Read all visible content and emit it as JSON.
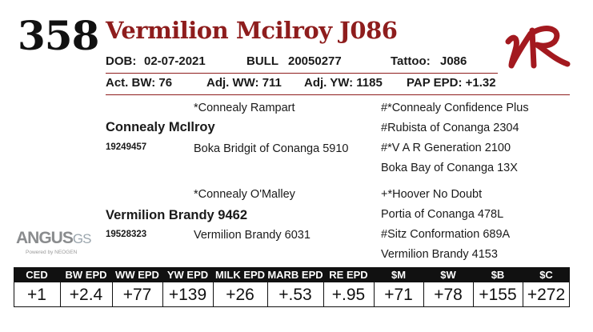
{
  "lot_number": "358",
  "name": "Vermilion Mcilroy J086",
  "dob_label": "DOB:",
  "dob": "02-07-2021",
  "sex_label": "BULL",
  "reg_number": "20050277",
  "tattoo_label": "Tattoo:",
  "tattoo": "J086",
  "act_bw": "Act. BW: 76",
  "adj_ww": "Adj. WW: 711",
  "adj_yw": "Adj. YW: 1185",
  "pap_epd": "PAP EPD: +1.32",
  "pedigree": {
    "sire": "Connealy McIlroy",
    "sire_reg": "19249457",
    "sire_sire": "*Connealy Rampart",
    "sire_dam": "Boka Bridgit of Conanga 5910",
    "sss": "#*Connealy Confidence Plus",
    "ssd": "#Rubista of Conanga 2304",
    "sds": "#*V A R Generation 2100",
    "sdd": "Boka Bay of Conanga 13X",
    "dam": "Vermilion Brandy 9462",
    "dam_reg": "19528323",
    "dam_sire": "*Connealy O'Malley",
    "dam_dam": "Vermilion Brandy 6031",
    "dss": "+*Hoover No Doubt",
    "dsd": "Portia of Conanga 478L",
    "dds": "#Sitz Conformation 689A",
    "ddd": "Vermilion Brandy 4153"
  },
  "angus_logo": {
    "word": "ANGUS",
    "suffix": "GS",
    "tagline": "Powered by NEOGEN"
  },
  "brand_logo_text": "VR",
  "colors": {
    "accent": "#8e1d1d",
    "header_bg": "#111111"
  },
  "epd_headers": [
    "CED",
    "BW EPD",
    "WW EPD",
    "YW EPD",
    "MILK EPD",
    "MARB EPD",
    "RE EPD",
    "$M",
    "$W",
    "$B",
    "$C"
  ],
  "epd_values": [
    "+1",
    "+2.4",
    "+77",
    "+139",
    "+26",
    "+.53",
    "+.95",
    "+71",
    "+78",
    "+155",
    "+272"
  ]
}
